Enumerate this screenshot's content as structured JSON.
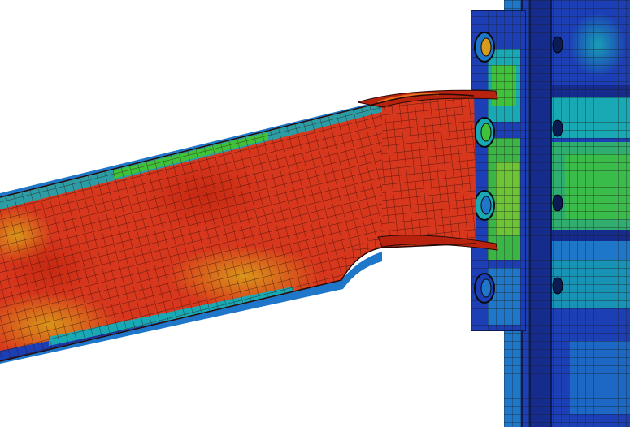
{
  "scene": {
    "subject": "fea-stress-contour-beam-column-connection",
    "palette": {
      "background": "#ffffff",
      "red": "#d7371d",
      "red_dark": "#b8230f",
      "orange": "#e8701c",
      "yellow_orange": "#d99a1a",
      "green": "#3fc23a",
      "cyan": "#19a9b5",
      "light_blue": "#1f77c9",
      "blue": "#1d3fb6",
      "navy": "#162c8c",
      "mesh_line": "#222222"
    }
  }
}
